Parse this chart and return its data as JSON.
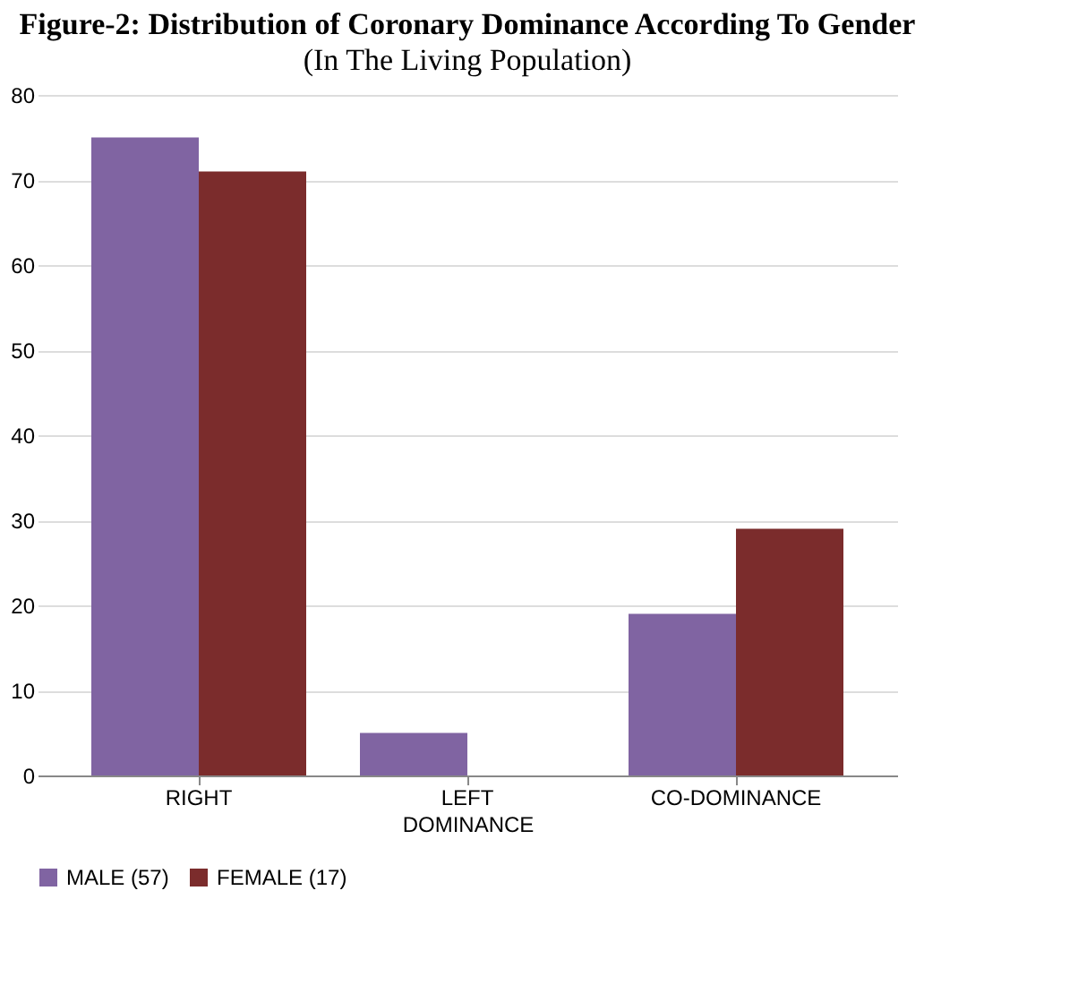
{
  "chart_data": {
    "type": "bar",
    "title": "Figure-2: Distribution of Coronary Dominance According To Gender",
    "subtitle": "(In The Living Population)",
    "xlabel": "DOMINANCE",
    "categories": [
      "RIGHT",
      "LEFT",
      "CO-DOMINANCE"
    ],
    "series": [
      {
        "name": "MALE (57)",
        "color": "#8064a2",
        "values": [
          75,
          5,
          19
        ]
      },
      {
        "name": "FEMALE (17)",
        "color": "#7b2c2c",
        "values": [
          71,
          0,
          29
        ]
      }
    ],
    "ylim": [
      0,
      80
    ],
    "yticks": [
      0,
      10,
      20,
      30,
      40,
      50,
      60,
      70,
      80
    ],
    "grid": "y",
    "legend": "bottom"
  }
}
